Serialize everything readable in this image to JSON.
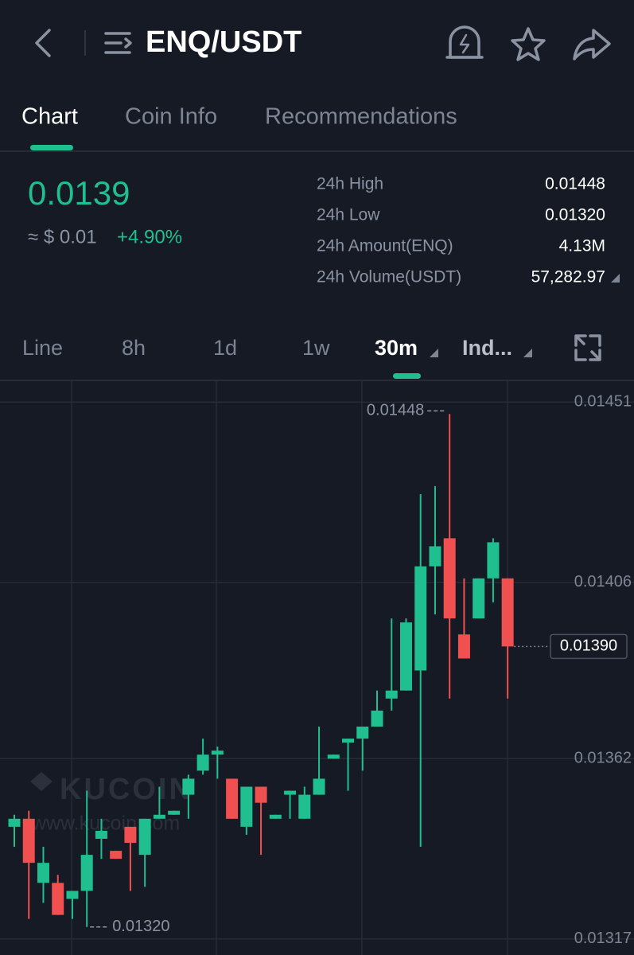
{
  "header": {
    "title": "ENQ/USDT"
  },
  "tabs": [
    "Chart",
    "Coin Info",
    "Recommendations"
  ],
  "price": {
    "last": "0.0139",
    "fiat": "≈ $ 0.01",
    "change": "+4.90%"
  },
  "stats": [
    {
      "label": "24h High",
      "value": "0.01448"
    },
    {
      "label": "24h Low",
      "value": "0.01320"
    },
    {
      "label": "24h Amount(ENQ)",
      "value": "4.13M"
    },
    {
      "label": "24h Volume(USDT)",
      "value": "57,282.97"
    }
  ],
  "timeframes": [
    "Line",
    "8h",
    "1d",
    "1w",
    "30m",
    "Ind..."
  ],
  "watermark": {
    "brand": "KUCOIN",
    "url": "www.kucoin.com"
  },
  "chart_data": {
    "type": "candlestick",
    "up_color": "#1fbf8f",
    "down_color": "#f0504f",
    "ylim": [
      0.01313,
      0.014564
    ],
    "yticks": [
      0.01451,
      0.01406,
      0.01362,
      0.01317
    ],
    "grid": true,
    "open": [
      0.01345,
      0.01347,
      0.01331,
      0.01331,
      0.01327,
      0.01329,
      0.01342,
      0.01339,
      0.01345,
      0.01338,
      0.01347,
      0.01348,
      0.01353,
      0.01359,
      0.01363,
      0.01357,
      0.01345,
      0.01355,
      0.01347,
      0.01353,
      0.01347,
      0.01353,
      0.01362,
      0.01366,
      0.01367,
      0.0137,
      0.01377,
      0.01379,
      0.01384,
      0.0141,
      0.01417,
      0.01393,
      0.01397,
      0.01407,
      0.01407
    ],
    "high": [
      0.01348,
      0.01349,
      0.0134,
      0.01333,
      0.01329,
      0.01354,
      0.01347,
      0.01339,
      0.01345,
      0.01347,
      0.01355,
      0.01349,
      0.01358,
      0.01367,
      0.01365,
      0.01357,
      0.01355,
      0.01355,
      0.01348,
      0.01354,
      0.01355,
      0.0137,
      0.01363,
      0.01367,
      0.0137,
      0.01379,
      0.01397,
      0.01397,
      0.01428,
      0.0143,
      0.01448,
      0.01407,
      0.01407,
      0.01417,
      0.01407
    ],
    "low": [
      0.0134,
      0.01322,
      0.01326,
      0.01323,
      0.01322,
      0.0132,
      0.01337,
      0.01337,
      0.01329,
      0.0133,
      0.01347,
      0.01348,
      0.01347,
      0.01358,
      0.01357,
      0.01347,
      0.01343,
      0.01338,
      0.01347,
      0.01347,
      0.01347,
      0.01353,
      0.01362,
      0.01354,
      0.01359,
      0.0137,
      0.01374,
      0.01379,
      0.0134,
      0.01398,
      0.01377,
      0.01387,
      0.01397,
      0.01401,
      0.01377
    ],
    "close": [
      0.01347,
      0.01336,
      0.01336,
      0.01323,
      0.01329,
      0.01338,
      0.01344,
      0.01337,
      0.01341,
      0.01347,
      0.01348,
      0.01349,
      0.01357,
      0.01363,
      0.01364,
      0.01347,
      0.01355,
      0.01351,
      0.01348,
      0.01354,
      0.01353,
      0.01357,
      0.01363,
      0.01367,
      0.0137,
      0.01374,
      0.01379,
      0.01396,
      0.0141,
      0.01415,
      0.01397,
      0.01387,
      0.01407,
      0.01416,
      0.0139
    ],
    "high_label": 0.01448,
    "low_label": {
      "value": 0.0132,
      "label": "0.01320"
    },
    "last_price": {
      "value": 0.0139,
      "label": "0.01390"
    }
  }
}
